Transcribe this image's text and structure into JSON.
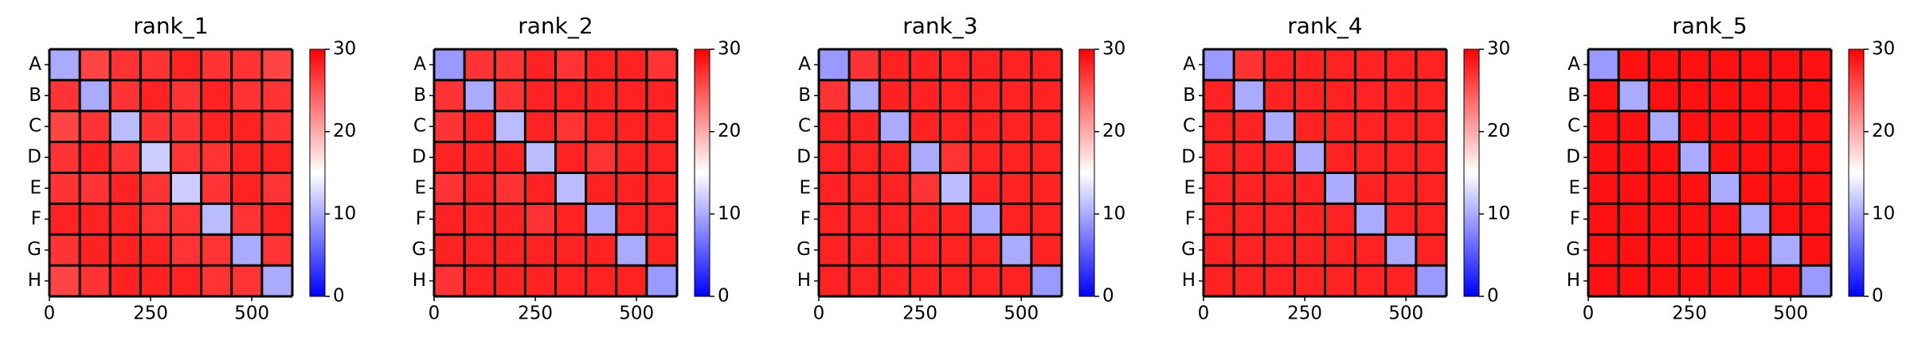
{
  "chart_data": [
    {
      "type": "heatmap",
      "title": "rank_1",
      "categories": [
        "A",
        "B",
        "C",
        "D",
        "E",
        "F",
        "G",
        "H"
      ],
      "xlim": [
        0,
        600
      ],
      "xticks": [
        0,
        250,
        500
      ],
      "clim": [
        0,
        30
      ],
      "cticks": [
        0,
        10,
        20,
        30
      ],
      "values": [
        [
          10,
          26,
          27,
          27,
          28,
          27,
          27,
          26
        ],
        [
          27,
          10,
          27,
          28,
          27,
          28,
          27,
          27
        ],
        [
          26,
          27,
          11,
          27,
          27,
          28,
          28,
          27
        ],
        [
          27,
          28,
          27,
          12,
          27,
          27,
          28,
          28
        ],
        [
          27,
          27,
          28,
          27,
          12,
          27,
          28,
          27
        ],
        [
          28,
          28,
          28,
          27,
          27,
          11,
          27,
          28
        ],
        [
          27,
          28,
          28,
          28,
          27,
          27,
          10,
          27
        ],
        [
          26,
          27,
          28,
          28,
          28,
          27,
          27,
          10
        ]
      ]
    },
    {
      "type": "heatmap",
      "title": "rank_2",
      "categories": [
        "A",
        "B",
        "C",
        "D",
        "E",
        "F",
        "G",
        "H"
      ],
      "xlim": [
        0,
        600
      ],
      "xticks": [
        0,
        250,
        500
      ],
      "clim": [
        0,
        30
      ],
      "cticks": [
        0,
        10,
        20,
        30
      ],
      "values": [
        [
          9,
          27,
          27,
          28,
          27,
          28,
          28,
          27
        ],
        [
          27,
          10,
          27,
          28,
          28,
          28,
          28,
          28
        ],
        [
          27,
          28,
          11,
          28,
          27,
          28,
          28,
          28
        ],
        [
          28,
          28,
          28,
          11,
          28,
          27,
          28,
          28
        ],
        [
          27,
          28,
          27,
          28,
          11,
          28,
          28,
          28
        ],
        [
          28,
          28,
          28,
          27,
          28,
          10,
          28,
          28
        ],
        [
          28,
          28,
          28,
          28,
          28,
          28,
          10,
          28
        ],
        [
          27,
          28,
          28,
          28,
          28,
          28,
          28,
          9
        ]
      ]
    },
    {
      "type": "heatmap",
      "title": "rank_3",
      "categories": [
        "A",
        "B",
        "C",
        "D",
        "E",
        "F",
        "G",
        "H"
      ],
      "xlim": [
        0,
        600
      ],
      "xticks": [
        0,
        250,
        500
      ],
      "clim": [
        0,
        30
      ],
      "cticks": [
        0,
        10,
        20,
        30
      ],
      "values": [
        [
          9,
          27,
          28,
          28,
          28,
          28,
          28,
          28
        ],
        [
          27,
          10,
          28,
          28,
          28,
          28,
          28,
          28
        ],
        [
          28,
          28,
          10,
          28,
          28,
          28,
          28,
          28
        ],
        [
          28,
          28,
          28,
          10,
          27,
          28,
          28,
          28
        ],
        [
          28,
          28,
          28,
          27,
          11,
          28,
          28,
          28
        ],
        [
          28,
          28,
          28,
          28,
          28,
          10,
          28,
          28
        ],
        [
          28,
          28,
          28,
          28,
          28,
          28,
          10,
          28
        ],
        [
          28,
          28,
          28,
          28,
          28,
          28,
          28,
          9
        ]
      ]
    },
    {
      "type": "heatmap",
      "title": "rank_4",
      "categories": [
        "A",
        "B",
        "C",
        "D",
        "E",
        "F",
        "G",
        "H"
      ],
      "xlim": [
        0,
        600
      ],
      "xticks": [
        0,
        250,
        500
      ],
      "clim": [
        0,
        30
      ],
      "cticks": [
        0,
        10,
        20,
        30
      ],
      "values": [
        [
          9,
          27,
          28,
          28,
          28,
          28,
          28,
          28
        ],
        [
          28,
          10,
          28,
          28,
          28,
          28,
          28,
          28
        ],
        [
          28,
          28,
          10,
          28,
          28,
          28,
          28,
          28
        ],
        [
          28,
          28,
          28,
          10,
          28,
          28,
          28,
          28
        ],
        [
          28,
          28,
          28,
          28,
          10,
          28,
          28,
          28
        ],
        [
          28,
          28,
          28,
          28,
          28,
          10,
          28,
          28
        ],
        [
          28,
          28,
          28,
          28,
          28,
          28,
          10,
          28
        ],
        [
          28,
          28,
          28,
          28,
          28,
          28,
          28,
          9
        ]
      ]
    },
    {
      "type": "heatmap",
      "title": "rank_5",
      "categories": [
        "A",
        "B",
        "C",
        "D",
        "E",
        "F",
        "G",
        "H"
      ],
      "xlim": [
        0,
        600
      ],
      "xticks": [
        0,
        250,
        500
      ],
      "clim": [
        0,
        30
      ],
      "cticks": [
        0,
        10,
        20,
        30
      ],
      "values": [
        [
          9,
          29,
          29,
          29,
          29,
          29,
          29,
          29
        ],
        [
          29,
          10,
          29,
          29,
          29,
          29,
          29,
          29
        ],
        [
          29,
          29,
          10,
          29,
          29,
          29,
          29,
          29
        ],
        [
          29,
          29,
          29,
          10,
          29,
          29,
          29,
          29
        ],
        [
          29,
          29,
          29,
          29,
          10,
          29,
          29,
          29
        ],
        [
          29,
          29,
          29,
          29,
          29,
          10,
          29,
          29
        ],
        [
          29,
          29,
          29,
          29,
          29,
          29,
          10,
          29
        ],
        [
          29,
          29,
          29,
          29,
          29,
          29,
          29,
          9
        ]
      ]
    }
  ]
}
